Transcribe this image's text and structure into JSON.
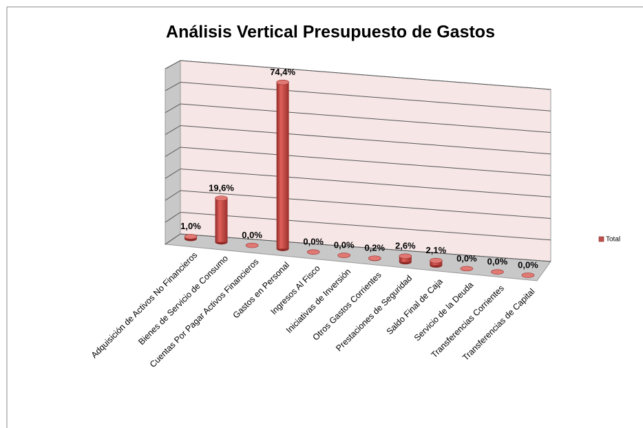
{
  "chart_data": {
    "type": "bar3d",
    "title": "Análisis Vertical Presupuesto de Gastos",
    "categories": [
      "Adquisición de Activos No Financieros",
      "Bienes de Servicio de Consumo",
      "Cuentas Por Pagar Activos Financieros",
      "Gastos en Personal",
      "Ingresos Al Fisco",
      "Iniciativas de Inversión",
      "Otros Gastos Corrientes",
      "Prestaciones de Seguridad",
      "Saldo Final de Caja",
      "Servicio de la Deuda",
      "Transferencias Corrientes",
      "Transferencias de Capital"
    ],
    "series": [
      {
        "name": "Total",
        "color": "#c0504d",
        "values": [
          1.0,
          19.6,
          0.0,
          74.4,
          0.0,
          0.0,
          0.2,
          2.6,
          2.1,
          0.0,
          0.0,
          0.0
        ],
        "value_labels": [
          "1,0%",
          "19,6%",
          "0,0%",
          "74,4%",
          "0,0%",
          "0,0%",
          "0,2%",
          "2,6%",
          "2,1%",
          "0,0%",
          "0,0%",
          "0,0%"
        ]
      }
    ],
    "ylim": [
      0,
      80
    ],
    "yticks": [
      0,
      10,
      20,
      30,
      40,
      50,
      60,
      70,
      80
    ],
    "grid": true,
    "legend": "right"
  }
}
